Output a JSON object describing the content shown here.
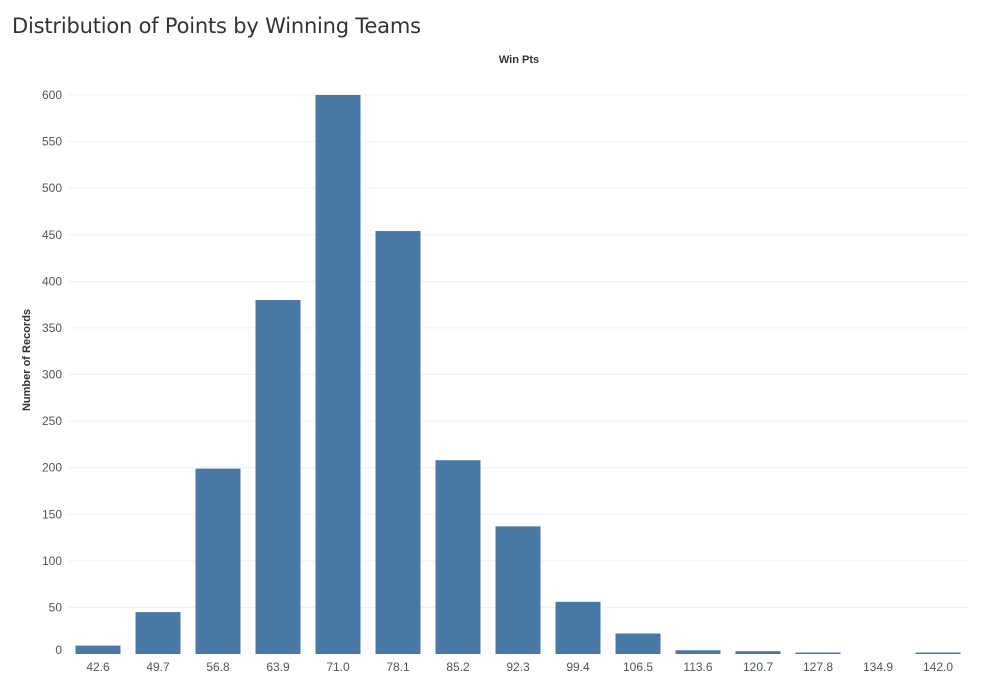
{
  "title": "Distribution of Points by Winning Teams",
  "chart_data": {
    "type": "bar",
    "title": "Distribution of Points by Winning Teams",
    "xlabel": "Win Pts",
    "xlabel_position": "top",
    "ylabel": "Number of Records",
    "categories": [
      "42.6",
      "49.7",
      "56.8",
      "63.9",
      "71.0",
      "78.1",
      "85.2",
      "92.3",
      "99.4",
      "106.5",
      "113.6",
      "120.7",
      "127.8",
      "134.9",
      "142.0"
    ],
    "values": [
      9,
      45,
      199,
      380,
      600,
      454,
      208,
      137,
      56,
      22,
      4,
      3,
      1,
      0,
      1
    ],
    "ylim": [
      0,
      620
    ],
    "yticks": [
      0,
      50,
      100,
      150,
      200,
      250,
      300,
      350,
      400,
      450,
      500,
      550,
      600
    ],
    "grid": true,
    "bar_color": "#4a78a4",
    "grid_color": "#f0f0f0"
  }
}
